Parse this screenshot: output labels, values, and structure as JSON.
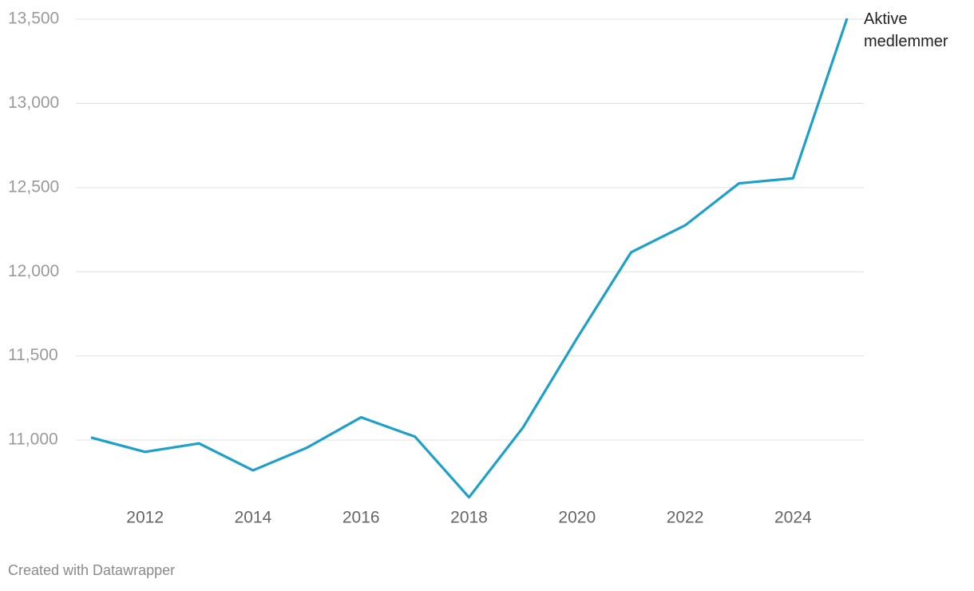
{
  "chart_data": {
    "type": "line",
    "x": [
      2011,
      2012,
      2013,
      2014,
      2015,
      2016,
      2017,
      2018,
      2019,
      2020,
      2021,
      2022,
      2023,
      2024,
      2025
    ],
    "series": [
      {
        "name": "Aktive medlemmer",
        "color": "#1ea0c9",
        "values": [
          11015,
          10930,
          10980,
          10820,
          10955,
          11135,
          11020,
          10660,
          11075,
          11605,
          12115,
          12275,
          12525,
          12555,
          13505
        ]
      }
    ],
    "xlim": [
      2011,
      2025
    ],
    "xticks": [
      2012,
      2014,
      2016,
      2018,
      2020,
      2022,
      2024
    ],
    "ylim": [
      10640,
      13520
    ],
    "yticks": [
      {
        "value": 11000,
        "label": "11,000"
      },
      {
        "value": 11500,
        "label": "11,500"
      },
      {
        "value": 12000,
        "label": "12,000"
      },
      {
        "value": 12500,
        "label": "12,500"
      },
      {
        "value": 13000,
        "label": "13,000"
      },
      {
        "value": 13500,
        "label": "13,500"
      }
    ],
    "grid": true,
    "credit": "Created with Datawrapper"
  }
}
